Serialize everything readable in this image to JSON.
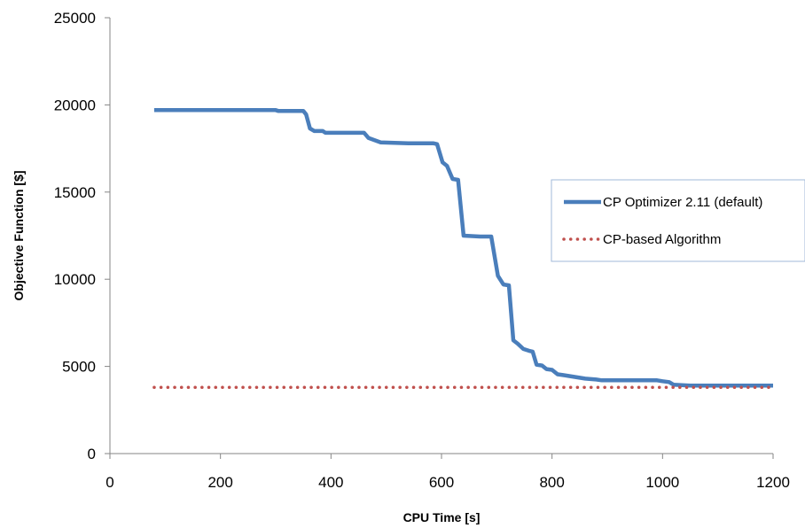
{
  "chart_data": {
    "type": "line",
    "xlabel": "CPU Time [s]",
    "ylabel": "Objective Function [$]",
    "xlim": [
      0,
      1200
    ],
    "ylim": [
      0,
      25000
    ],
    "xticks": [
      0,
      200,
      400,
      600,
      800,
      1000,
      1200
    ],
    "yticks": [
      0,
      5000,
      10000,
      15000,
      20000,
      25000
    ],
    "grid": false,
    "legend_position": "right",
    "series": [
      {
        "name": "CP Optimizer 2.11 (default)",
        "color": "#4a7ebb",
        "style": "solid",
        "points": [
          [
            80,
            19700
          ],
          [
            300,
            19700
          ],
          [
            305,
            19650
          ],
          [
            350,
            19650
          ],
          [
            355,
            19450
          ],
          [
            362,
            18650
          ],
          [
            370,
            18500
          ],
          [
            385,
            18500
          ],
          [
            390,
            18400
          ],
          [
            460,
            18400
          ],
          [
            468,
            18100
          ],
          [
            490,
            17850
          ],
          [
            540,
            17800
          ],
          [
            585,
            17800
          ],
          [
            592,
            17750
          ],
          [
            602,
            16700
          ],
          [
            610,
            16500
          ],
          [
            620,
            15750
          ],
          [
            630,
            15700
          ],
          [
            640,
            12500
          ],
          [
            670,
            12450
          ],
          [
            690,
            12450
          ],
          [
            702,
            10200
          ],
          [
            712,
            9700
          ],
          [
            722,
            9650
          ],
          [
            730,
            6500
          ],
          [
            738,
            6300
          ],
          [
            748,
            6000
          ],
          [
            758,
            5900
          ],
          [
            765,
            5850
          ],
          [
            772,
            5100
          ],
          [
            782,
            5050
          ],
          [
            790,
            4850
          ],
          [
            800,
            4800
          ],
          [
            810,
            4550
          ],
          [
            820,
            4500
          ],
          [
            830,
            4450
          ],
          [
            860,
            4300
          ],
          [
            880,
            4250
          ],
          [
            890,
            4200
          ],
          [
            990,
            4200
          ],
          [
            1000,
            4150
          ],
          [
            1012,
            4100
          ],
          [
            1020,
            3950
          ],
          [
            1050,
            3900
          ],
          [
            1160,
            3900
          ],
          [
            1200,
            3900
          ]
        ]
      },
      {
        "name": "CP-based Algorithm",
        "color": "#c0504d",
        "style": "dotted",
        "points": [
          [
            80,
            3800
          ],
          [
            1200,
            3800
          ]
        ]
      }
    ]
  }
}
